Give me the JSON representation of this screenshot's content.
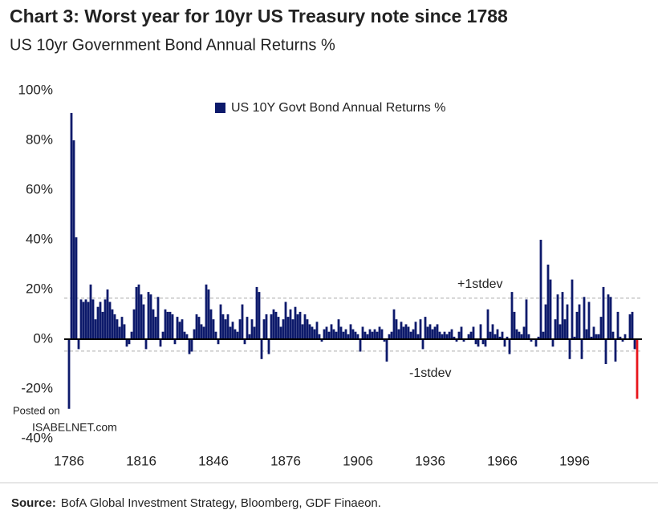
{
  "chart_data": {
    "type": "bar",
    "title": "Chart 3: Worst year for 10yr US Treasury note since 1788",
    "subtitle": "US 10yr Government Bond Annual Returns %",
    "x": [
      1786,
      1787,
      1788,
      1789,
      1790,
      1791,
      1792,
      1793,
      1794,
      1795,
      1796,
      1797,
      1798,
      1799,
      1800,
      1801,
      1802,
      1803,
      1804,
      1805,
      1806,
      1807,
      1808,
      1809,
      1810,
      1811,
      1812,
      1813,
      1814,
      1815,
      1816,
      1817,
      1818,
      1819,
      1820,
      1821,
      1822,
      1823,
      1824,
      1825,
      1826,
      1827,
      1828,
      1829,
      1830,
      1831,
      1832,
      1833,
      1834,
      1835,
      1836,
      1837,
      1838,
      1839,
      1840,
      1841,
      1842,
      1843,
      1844,
      1845,
      1846,
      1847,
      1848,
      1849,
      1850,
      1851,
      1852,
      1853,
      1854,
      1855,
      1856,
      1857,
      1858,
      1859,
      1860,
      1861,
      1862,
      1863,
      1864,
      1865,
      1866,
      1867,
      1868,
      1869,
      1870,
      1871,
      1872,
      1873,
      1874,
      1875,
      1876,
      1877,
      1878,
      1879,
      1880,
      1881,
      1882,
      1883,
      1884,
      1885,
      1886,
      1887,
      1888,
      1889,
      1890,
      1891,
      1892,
      1893,
      1894,
      1895,
      1896,
      1897,
      1898,
      1899,
      1900,
      1901,
      1902,
      1903,
      1904,
      1905,
      1906,
      1907,
      1908,
      1909,
      1910,
      1911,
      1912,
      1913,
      1914,
      1915,
      1916,
      1917,
      1918,
      1919,
      1920,
      1921,
      1922,
      1923,
      1924,
      1925,
      1926,
      1927,
      1928,
      1929,
      1930,
      1931,
      1932,
      1933,
      1934,
      1935,
      1936,
      1937,
      1938,
      1939,
      1940,
      1941,
      1942,
      1943,
      1944,
      1945,
      1946,
      1947,
      1948,
      1949,
      1950,
      1951,
      1952,
      1953,
      1954,
      1955,
      1956,
      1957,
      1958,
      1959,
      1960,
      1961,
      1962,
      1963,
      1964,
      1965,
      1966,
      1967,
      1968,
      1969,
      1970,
      1971,
      1972,
      1973,
      1974,
      1975,
      1976,
      1977,
      1978,
      1979,
      1980,
      1981,
      1982,
      1983,
      1984,
      1985,
      1986,
      1987,
      1988,
      1989,
      1990,
      1991,
      1992,
      1993,
      1994,
      1995,
      1996,
      1997,
      1998,
      1999,
      2000,
      2001,
      2002,
      2003,
      2004,
      2005,
      2006,
      2007,
      2008,
      2009,
      2010,
      2011,
      2012,
      2013,
      2014,
      2015,
      2016,
      2017,
      2018,
      2019,
      2020,
      2021,
      2022
    ],
    "series": [
      {
        "name": "US 10Y Govt Bond Annual Returns %",
        "color": "#0d1a6b",
        "last_bar_color": "#e8151b",
        "values": [
          -28,
          91,
          80,
          41,
          -4,
          16,
          15,
          16,
          15,
          22,
          16,
          8,
          13,
          15,
          11,
          16,
          20,
          15,
          12,
          10,
          8,
          5,
          9,
          6,
          -3,
          -2,
          3,
          12,
          21,
          22,
          18,
          14,
          -4,
          19,
          18,
          12,
          9,
          17,
          -3,
          3,
          12,
          11,
          11,
          10,
          -2,
          9,
          7,
          8,
          3,
          2,
          -6,
          -5,
          4,
          10,
          9,
          6,
          5,
          22,
          20,
          12,
          8,
          3,
          -2,
          14,
          10,
          8,
          10,
          5,
          7,
          4,
          3,
          8,
          14,
          -2,
          9,
          2,
          8,
          5,
          21,
          19,
          -8,
          8,
          10,
          -6,
          10,
          12,
          11,
          9,
          5,
          8,
          15,
          9,
          12,
          8,
          13,
          10,
          11,
          6,
          10,
          8,
          6,
          5,
          4,
          7,
          2,
          -1,
          4,
          5,
          3,
          6,
          4,
          3,
          8,
          5,
          3,
          4,
          2,
          6,
          4,
          3,
          2,
          -5,
          5,
          3,
          2,
          4,
          3,
          4,
          3,
          5,
          4,
          -1,
          -9,
          2,
          3,
          12,
          8,
          4,
          7,
          5,
          6,
          5,
          3,
          4,
          7,
          2,
          8,
          -4,
          9,
          5,
          6,
          4,
          5,
          6,
          3,
          2,
          3,
          2,
          3,
          4,
          1,
          -1,
          3,
          5,
          -1,
          0,
          2,
          3,
          5,
          -2,
          -3,
          6,
          -2,
          -3,
          12,
          3,
          6,
          2,
          4,
          1,
          3,
          -3,
          1,
          -6,
          19,
          11,
          4,
          3,
          2,
          5,
          16,
          2,
          -1,
          0,
          -3,
          1,
          40,
          3,
          14,
          30,
          24,
          -3,
          8,
          18,
          6,
          19,
          8,
          14,
          -8,
          24,
          1,
          11,
          14,
          -8,
          17,
          4,
          15,
          1,
          5,
          2,
          2,
          9,
          21,
          -10,
          18,
          17,
          3,
          -9,
          11,
          1,
          -1,
          2,
          0,
          10,
          11,
          -4,
          -24
        ]
      }
    ],
    "xlim": [
      1784,
      2024
    ],
    "xticks": [
      1786,
      1816,
      1846,
      1876,
      1906,
      1936,
      1966,
      1996
    ],
    "ylim": [
      -40,
      100
    ],
    "yticks": [
      {
        "value": 100,
        "label": "100%"
      },
      {
        "value": 80,
        "label": "80%"
      },
      {
        "value": 60,
        "label": "60%"
      },
      {
        "value": 40,
        "label": "40%"
      },
      {
        "value": 20,
        "label": "20%"
      },
      {
        "value": 0,
        "label": "0%"
      },
      {
        "value": -20,
        "label": "-20%"
      },
      {
        "value": -40,
        "label": "-40%"
      }
    ],
    "reference_lines": [
      {
        "label": "+1stdev",
        "value": 16.5
      },
      {
        "label": "-1stdev",
        "value": -4.8
      }
    ],
    "legend": "top",
    "watermark": [
      "Posted on",
      "ISABELNET.com"
    ],
    "source_label": "Source:",
    "source": "BofA Global Investment Strategy, Bloomberg, GDF Finaeon."
  }
}
